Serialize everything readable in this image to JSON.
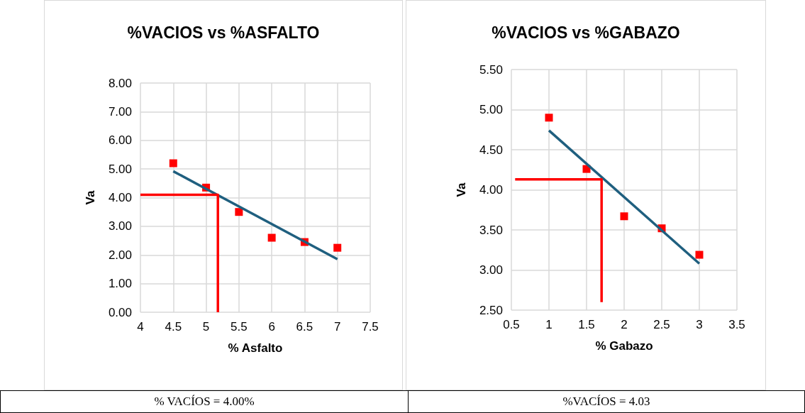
{
  "chart_data": [
    {
      "type": "scatter",
      "title": "%VACIOS vs %ASFALTO",
      "xlabel": "% Asfalto",
      "ylabel": "Va",
      "marker": "square",
      "grid": true,
      "x": [
        4.5,
        5,
        5.5,
        6,
        6.5,
        7
      ],
      "series": [
        {
          "color": "#ff0000",
          "values": [
            5.2,
            4.35,
            3.5,
            2.6,
            2.45,
            2.25
          ]
        },
        {
          "type": "line",
          "marker": "none",
          "color": "#1f5f7f",
          "x": [
            4.5,
            7
          ],
          "values": [
            4.92,
            1.85
          ]
        },
        {
          "type": "line",
          "marker": "none",
          "color": "#ff0000",
          "x": [
            4,
            5.18,
            5.18
          ],
          "values": [
            4.1,
            4.1,
            0
          ]
        }
      ],
      "xlim": [
        4,
        7.5
      ],
      "xticks": [
        4,
        4.5,
        5,
        5.5,
        6,
        6.5,
        7,
        7.5
      ],
      "ylim": [
        0,
        8
      ],
      "yticks": [
        {
          "value": 0,
          "label": "0.00"
        },
        {
          "value": 1,
          "label": "1.00"
        },
        {
          "value": 2,
          "label": "2.00"
        },
        {
          "value": 3,
          "label": "3.00"
        },
        {
          "value": 4,
          "label": "4.00"
        },
        {
          "value": 5,
          "label": "5.00"
        },
        {
          "value": 6,
          "label": "6.00"
        },
        {
          "value": 7,
          "label": "7.00"
        },
        {
          "value": 8,
          "label": "8.00"
        }
      ],
      "annotations": [
        "% VACÍOS = 4.00%"
      ]
    },
    {
      "type": "scatter",
      "title": "%VACIOS vs %GABAZO",
      "xlabel": "% Gabazo",
      "ylabel": "Va",
      "marker": "square",
      "grid": true,
      "x": [
        1,
        1.5,
        2,
        2.5,
        3
      ],
      "series": [
        {
          "color": "#ff0000",
          "values": [
            4.9,
            4.26,
            3.67,
            3.52,
            3.19
          ]
        },
        {
          "type": "line",
          "marker": "none",
          "color": "#1f5f7f",
          "x": [
            1,
            3
          ],
          "values": [
            4.74,
            3.08
          ]
        },
        {
          "type": "line",
          "marker": "none",
          "color": "#ff0000",
          "x": [
            0.55,
            1.7,
            1.7
          ],
          "values": [
            4.13,
            4.13,
            2.6
          ]
        }
      ],
      "xlim": [
        0.5,
        3.5
      ],
      "xticks": [
        0.5,
        1,
        1.5,
        2,
        2.5,
        3,
        3.5
      ],
      "ylim": [
        2.5,
        5.5
      ],
      "yticks": [
        {
          "value": 2.5,
          "label": "2.50"
        },
        {
          "value": 3,
          "label": "3.00"
        },
        {
          "value": 3.5,
          "label": "3.50"
        },
        {
          "value": 4,
          "label": "4.00"
        },
        {
          "value": 4.5,
          "label": "4.50"
        },
        {
          "value": 5,
          "label": "5.00"
        },
        {
          "value": 5.5,
          "label": "5.50"
        }
      ],
      "annotations": [
        "%VACÍOS = 4.03"
      ]
    }
  ]
}
